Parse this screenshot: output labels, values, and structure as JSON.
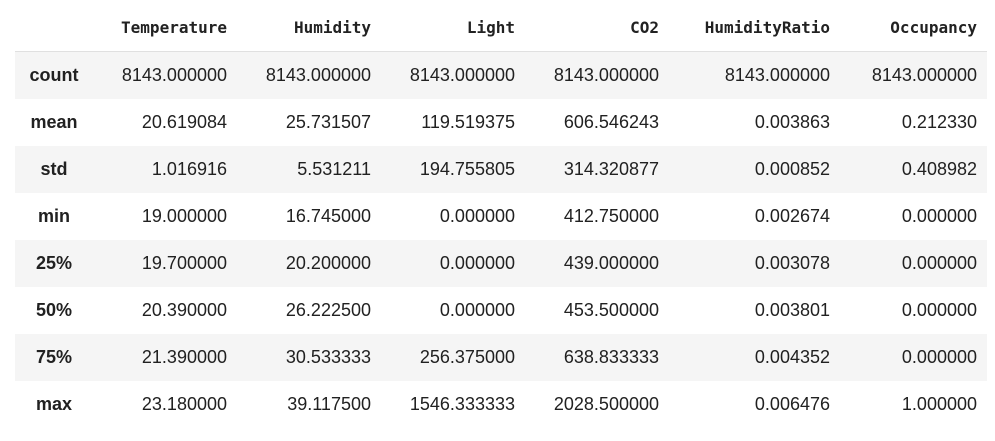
{
  "table": {
    "columns": [
      "",
      "Temperature",
      "Humidity",
      "Light",
      "CO2",
      "HumidityRatio",
      "Occupancy"
    ],
    "rows": [
      {
        "label": "count",
        "values": [
          "8143.000000",
          "8143.000000",
          "8143.000000",
          "8143.000000",
          "8143.000000",
          "8143.000000"
        ]
      },
      {
        "label": "mean",
        "values": [
          "20.619084",
          "25.731507",
          "119.519375",
          "606.546243",
          "0.003863",
          "0.212330"
        ]
      },
      {
        "label": "std",
        "values": [
          "1.016916",
          "5.531211",
          "194.755805",
          "314.320877",
          "0.000852",
          "0.408982"
        ]
      },
      {
        "label": "min",
        "values": [
          "19.000000",
          "16.745000",
          "0.000000",
          "412.750000",
          "0.002674",
          "0.000000"
        ]
      },
      {
        "label": "25%",
        "values": [
          "19.700000",
          "20.200000",
          "0.000000",
          "439.000000",
          "0.003078",
          "0.000000"
        ]
      },
      {
        "label": "50%",
        "values": [
          "20.390000",
          "26.222500",
          "0.000000",
          "453.500000",
          "0.003801",
          "0.000000"
        ]
      },
      {
        "label": "75%",
        "values": [
          "21.390000",
          "30.533333",
          "256.375000",
          "638.833333",
          "0.004352",
          "0.000000"
        ]
      },
      {
        "label": "max",
        "values": [
          "23.180000",
          "39.117500",
          "1546.333333",
          "2028.500000",
          "0.006476",
          "1.000000"
        ]
      }
    ]
  },
  "colors": {
    "stripe": "#f5f5f5",
    "header_border": "#e0e0e0",
    "text": "#212121"
  }
}
